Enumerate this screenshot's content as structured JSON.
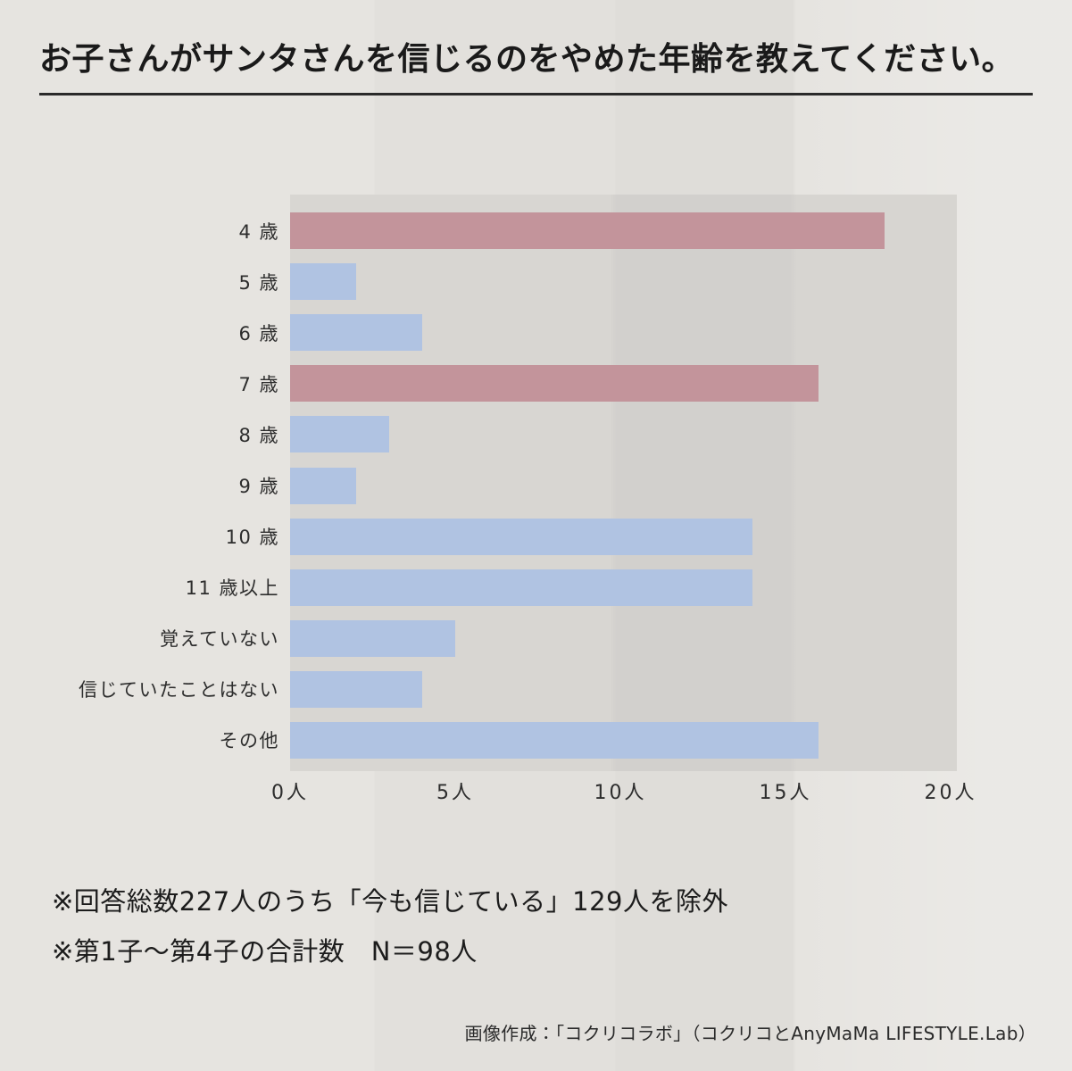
{
  "title": "お子さんがサンタさんを信じるのをやめた年齢を教えてください。",
  "chart_data": {
    "type": "bar",
    "orientation": "horizontal",
    "title": "お子さんがサンタさんを信じるのをやめた年齢を教えてください。",
    "categories": [
      "4 歳",
      "5 歳",
      "6 歳",
      "7 歳",
      "8 歳",
      "9 歳",
      "10 歳",
      "11 歳以上",
      "覚えていない",
      "信じていたことはない",
      "その他"
    ],
    "values": [
      18,
      2,
      4,
      16,
      3,
      2,
      14,
      14,
      5,
      4,
      16
    ],
    "highlighted": [
      true,
      false,
      false,
      true,
      false,
      false,
      false,
      false,
      false,
      false,
      false
    ],
    "unit": "人",
    "xlabel": "",
    "ylabel": "",
    "xlim": [
      0,
      20
    ],
    "x_ticks": [
      {
        "value": 0,
        "label": "0人"
      },
      {
        "value": 5,
        "label": "5人"
      },
      {
        "value": 10,
        "label": "10人"
      },
      {
        "value": 15,
        "label": "15人"
      },
      {
        "value": 20,
        "label": "20人"
      }
    ],
    "grid": false,
    "legend": false,
    "colors": {
      "highlight_bar": "#c3949b",
      "normal_bar": "#b0c3e2",
      "plot_background": "#d6d4d0",
      "page_background": "#e6e4e0",
      "text": "#1a1a1a"
    }
  },
  "notes": [
    "※回答総数227人のうち「今も信じている」129人を除外",
    "※第1子〜第4子の合計数　N＝98人"
  ],
  "credit": "画像作成：「コクリコラボ」（コクリコとAnyMaMa LIFESTYLE.Lab）"
}
